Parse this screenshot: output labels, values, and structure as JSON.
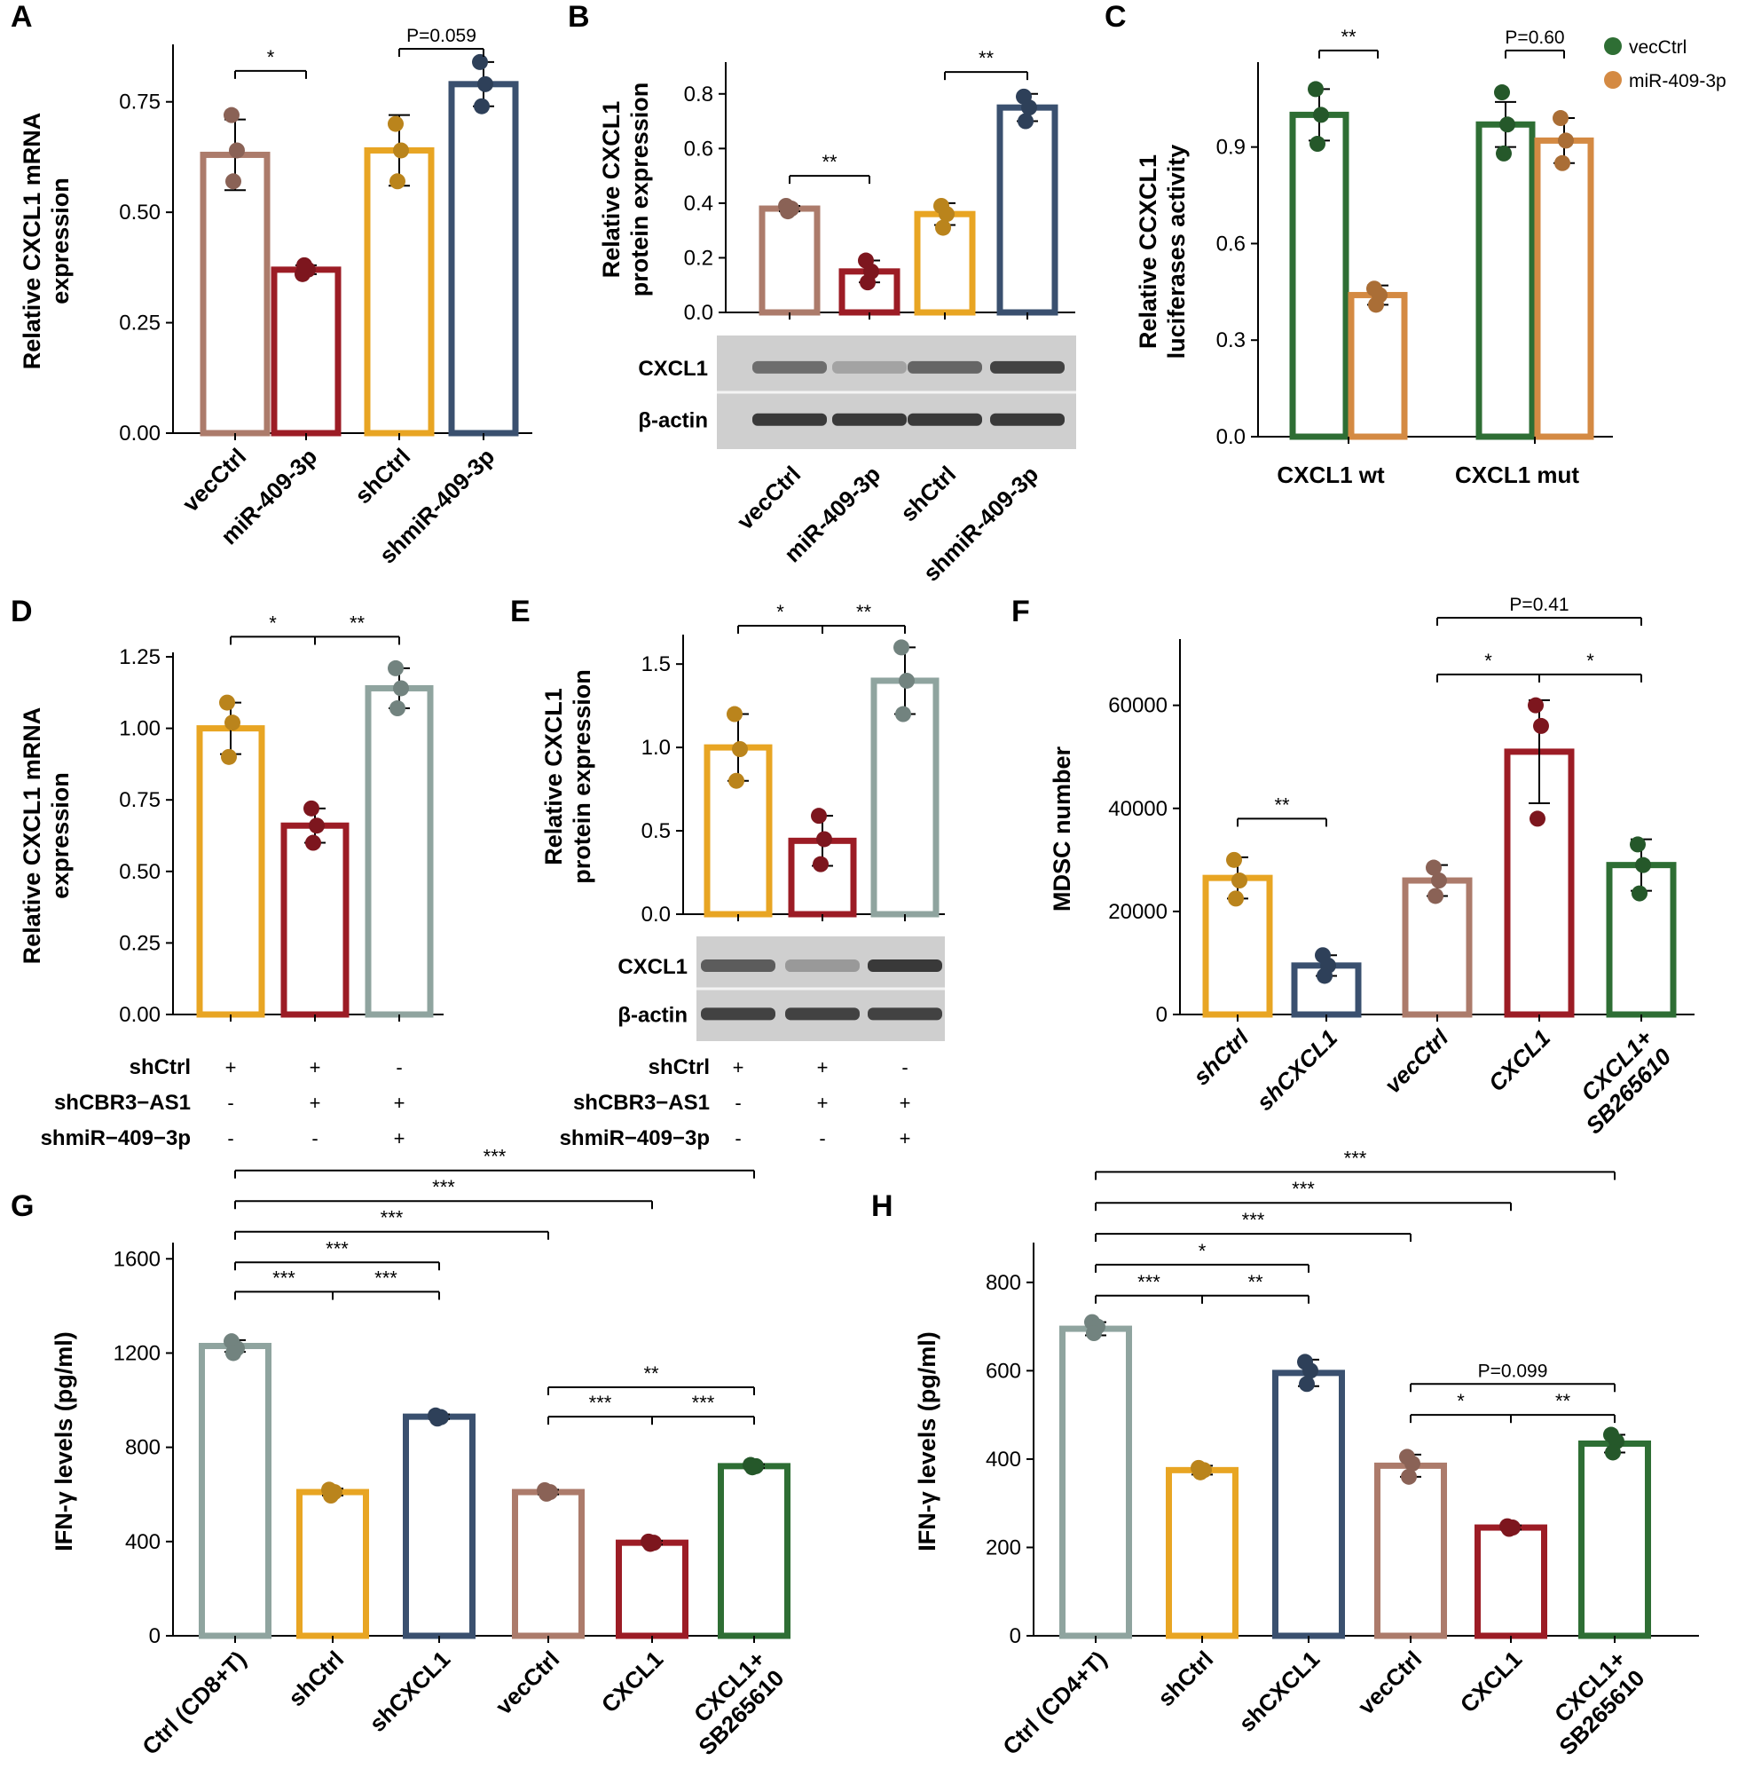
{
  "colors": {
    "vecCtrl": "#AC7B6B",
    "miR409": "#9C1C25",
    "shCtrl": "#E8A523",
    "shmiR409": "#3A506F",
    "gray": "#8FA49F",
    "luc_vec": "#2E6E34",
    "luc_mir": "#D48A43",
    "shCXCL1": "#3A506F",
    "CXCL1": "#9C1C25",
    "SB": "#2E6E34",
    "ctrl": "#8FA49F"
  },
  "chart_data": [
    {
      "id": "A",
      "panel_label": "A",
      "type": "bar",
      "ylabel": [
        "Relative CXCL1 mRNA",
        "expression"
      ],
      "ylim": [
        0,
        0.87
      ],
      "yticks": [
        0,
        0.25,
        0.5,
        0.75
      ],
      "ytick_labels": [
        "0.00",
        "0.25",
        "0.50",
        "0.75"
      ],
      "categories": [
        "vecCtrl",
        "miR-409-3p",
        "shCtrl",
        "shmiR-409-3p"
      ],
      "category_colors": [
        "vecCtrl",
        "miR409",
        "shCtrl",
        "shmiR409"
      ],
      "values": [
        0.63,
        0.37,
        0.64,
        0.79
      ],
      "err": [
        0.08,
        0.01,
        0.08,
        0.05
      ],
      "points": [
        [
          0.72,
          0.64,
          0.57
        ],
        [
          0.36,
          0.37,
          0.38
        ],
        [
          0.7,
          0.64,
          0.57
        ],
        [
          0.84,
          0.79,
          0.74
        ]
      ],
      "comparisons": [
        {
          "a": 0,
          "b": 1,
          "label": "*",
          "y": 0.82
        },
        {
          "a": 2,
          "b": 3,
          "label": "P=0.059",
          "y": 0.87
        }
      ]
    },
    {
      "id": "B",
      "panel_label": "B",
      "type": "bar",
      "ylabel": [
        "Relative CXCL1",
        "protein expression"
      ],
      "ylim": [
        0,
        0.9
      ],
      "yticks": [
        0,
        0.2,
        0.4,
        0.6,
        0.8
      ],
      "ytick_labels": [
        "0.0",
        "0.2",
        "0.4",
        "0.6",
        "0.8"
      ],
      "categories": [
        "vecCtrl",
        "miR-409-3p",
        "shCtrl",
        "shmiR-409-3p"
      ],
      "category_colors": [
        "vecCtrl",
        "miR409",
        "shCtrl",
        "shmiR409"
      ],
      "values": [
        0.38,
        0.15,
        0.36,
        0.75
      ],
      "err": [
        0.01,
        0.04,
        0.04,
        0.05
      ],
      "points": [
        [
          0.39,
          0.38,
          0.37
        ],
        [
          0.19,
          0.15,
          0.11
        ],
        [
          0.39,
          0.36,
          0.31
        ],
        [
          0.79,
          0.75,
          0.7
        ]
      ],
      "comparisons": [
        {
          "a": 0,
          "b": 1,
          "label": "**",
          "y": 0.5
        },
        {
          "a": 2,
          "b": 3,
          "label": "**",
          "y": 0.88
        }
      ],
      "blot": {
        "rows": [
          "CXCL1",
          "β-actin"
        ]
      }
    },
    {
      "id": "C",
      "panel_label": "C",
      "type": "bar",
      "ylabel": [
        "Relative CCXCL1",
        "luciferases activity"
      ],
      "ylim": [
        0,
        1.15
      ],
      "yticks": [
        0,
        0.3,
        0.6,
        0.9
      ],
      "ytick_labels": [
        "0.0",
        "0.3",
        "0.6",
        "0.9"
      ],
      "categories": [
        "CXCL1 wt",
        "CXCL1 mut"
      ],
      "series": [
        {
          "name": "vecCtrl",
          "color": "luc_vec",
          "values": [
            1.0,
            0.97
          ],
          "err": [
            0.08,
            0.07
          ],
          "points": [
            [
              1.08,
              1.0,
              0.91
            ],
            [
              1.07,
              0.97,
              0.88
            ]
          ]
        },
        {
          "name": "miR-409-3p",
          "color": "luc_mir",
          "values": [
            0.44,
            0.92
          ],
          "err": [
            0.03,
            0.07
          ],
          "points": [
            [
              0.46,
              0.44,
              0.41
            ],
            [
              0.99,
              0.92,
              0.85
            ]
          ]
        }
      ],
      "comparisons": [
        {
          "g": 0,
          "label": "**",
          "y": 1.2
        },
        {
          "g": 1,
          "label": "P=0.60",
          "y": 1.2
        }
      ],
      "legend": [
        "vecCtrl",
        "miR-409-3p"
      ]
    },
    {
      "id": "D",
      "panel_label": "D",
      "type": "bar",
      "ylabel": [
        "Relative CXCL1 mRNA",
        "expression"
      ],
      "ylim": [
        0,
        1.25
      ],
      "yticks": [
        0,
        0.25,
        0.5,
        0.75,
        1.0,
        1.25
      ],
      "ytick_labels": [
        "0.00",
        "0.25",
        "0.50",
        "0.75",
        "1.00",
        "1.25"
      ],
      "category_colors": [
        "shCtrl",
        "miR409",
        "gray"
      ],
      "values": [
        1.0,
        0.66,
        1.14
      ],
      "err": [
        0.09,
        0.06,
        0.07
      ],
      "points": [
        [
          1.09,
          1.02,
          0.9
        ],
        [
          0.72,
          0.66,
          0.6
        ],
        [
          1.21,
          1.14,
          1.07
        ]
      ],
      "comparisons": [
        {
          "a": 0,
          "b": 1,
          "label": "*",
          "y": 1.32
        },
        {
          "a": 1,
          "b": 2,
          "label": "**",
          "y": 1.32
        }
      ],
      "conditions": [
        {
          "label": "shCtrl",
          "signs": [
            "+",
            "+",
            "-"
          ]
        },
        {
          "label": "shCBR3−AS1",
          "signs": [
            "-",
            "+",
            "+"
          ]
        },
        {
          "label": "shmiR−409−3p",
          "signs": [
            "-",
            "-",
            "+"
          ]
        }
      ]
    },
    {
      "id": "E",
      "panel_label": "E",
      "type": "bar",
      "ylabel": [
        "Relative CXCL1",
        "protein expression"
      ],
      "ylim": [
        0,
        1.65
      ],
      "yticks": [
        0,
        0.5,
        1.0,
        1.5
      ],
      "ytick_labels": [
        "0.0",
        "0.5",
        "1.0",
        "1.5"
      ],
      "category_colors": [
        "shCtrl",
        "miR409",
        "gray"
      ],
      "values": [
        1.0,
        0.44,
        1.4
      ],
      "err": [
        0.2,
        0.15,
        0.2
      ],
      "points": [
        [
          1.2,
          0.99,
          0.8
        ],
        [
          0.59,
          0.45,
          0.3
        ],
        [
          1.6,
          1.4,
          1.2
        ]
      ],
      "comparisons": [
        {
          "a": 0,
          "b": 1,
          "label": "*",
          "y": 1.73
        },
        {
          "a": 1,
          "b": 2,
          "label": "**",
          "y": 1.73
        }
      ],
      "conditions": [
        {
          "label": "shCtrl",
          "signs": [
            "+",
            "+",
            "-"
          ]
        },
        {
          "label": "shCBR3−AS1",
          "signs": [
            "-",
            "+",
            "+"
          ]
        },
        {
          "label": "shmiR−409−3p",
          "signs": [
            "-",
            "-",
            "+"
          ]
        }
      ],
      "blot": {
        "rows": [
          "CXCL1",
          "β-actin"
        ]
      }
    },
    {
      "id": "F",
      "panel_label": "F",
      "type": "bar",
      "ylabel": [
        "MDSC number"
      ],
      "ylim": [
        0,
        72000
      ],
      "yticks": [
        0,
        20000,
        40000,
        60000
      ],
      "ytick_labels": [
        "0",
        "20000",
        "40000",
        "60000"
      ],
      "categories": [
        "shCtrl",
        "shCXCL1",
        "vecCtrl",
        "CXCL1",
        "CXCL1+|SB265610"
      ],
      "category_colors": [
        "shCtrl",
        "shCXCL1",
        "vecCtrl",
        "CXCL1",
        "SB"
      ],
      "values": [
        26500,
        9500,
        26000,
        51000,
        29000
      ],
      "err": [
        4000,
        2000,
        3000,
        10000,
        5000
      ],
      "points": [
        [
          30000,
          26000,
          22500
        ],
        [
          11500,
          9500,
          7500
        ],
        [
          28500,
          26000,
          23000
        ],
        [
          60000,
          56000,
          38000
        ],
        [
          33000,
          29000,
          23500
        ]
      ],
      "comparisons": [
        {
          "a": 0,
          "b": 1,
          "label": "**",
          "y": 38000
        },
        {
          "a": 2,
          "b": 3,
          "label": "*",
          "y": 66000
        },
        {
          "a": 3,
          "b": 4,
          "label": "*",
          "y": 66000
        },
        {
          "a": 2,
          "b": 4,
          "label": "P=0.41",
          "y": 77000
        }
      ]
    },
    {
      "id": "G",
      "panel_label": "G",
      "type": "bar",
      "ylabel": [
        "IFN-γ levels (pg/ml)"
      ],
      "ylim": [
        0,
        1650
      ],
      "yticks": [
        0,
        400,
        800,
        1200,
        1600
      ],
      "ytick_labels": [
        "0",
        "400",
        "800",
        "1200",
        "1600"
      ],
      "categories": [
        "Ctrl (CD8+T)",
        "shCtrl",
        "shCXCL1",
        "vecCtrl",
        "CXCL1",
        "CXCL1+|SB265610"
      ],
      "category_colors": [
        "ctrl",
        "shCtrl",
        "shCXCL1",
        "vecCtrl",
        "CXCL1",
        "SB"
      ],
      "values": [
        1230,
        610,
        930,
        610,
        395,
        720
      ],
      "err": [
        25,
        15,
        10,
        10,
        8,
        8
      ],
      "points": [
        [
          1250,
          1220,
          1200
        ],
        [
          620,
          610,
          595
        ],
        [
          935,
          928,
          922
        ],
        [
          618,
          610,
          603
        ],
        [
          400,
          395,
          390
        ],
        [
          725,
          720,
          715
        ]
      ],
      "comparisons": [
        {
          "a": 0,
          "b": 1,
          "label": "***",
          "y": 1460
        },
        {
          "a": 1,
          "b": 2,
          "label": "***",
          "y": 1460
        },
        {
          "a": 0,
          "b": 2,
          "label": "***",
          "y": 1585
        },
        {
          "a": 0,
          "b": 3,
          "label": "***",
          "y": 1715
        },
        {
          "a": 0,
          "b": 4,
          "label": "***",
          "y": 1845
        },
        {
          "a": 0,
          "b": 5,
          "label": "***",
          "y": 1975
        },
        {
          "a": 3,
          "b": 4,
          "label": "***",
          "y": 930
        },
        {
          "a": 4,
          "b": 5,
          "label": "***",
          "y": 930
        },
        {
          "a": 3,
          "b": 5,
          "label": "**",
          "y": 1055
        }
      ]
    },
    {
      "id": "H",
      "panel_label": "H",
      "type": "bar",
      "ylabel": [
        "IFN-γ levels (pg/ml)"
      ],
      "ylim": [
        0,
        880
      ],
      "yticks": [
        0,
        200,
        400,
        600,
        800
      ],
      "ytick_labels": [
        "0",
        "200",
        "400",
        "600",
        "800"
      ],
      "categories": [
        "Ctrl (CD4+T)",
        "shCtrl",
        "shCXCL1",
        "vecCtrl",
        "CXCL1",
        "CXCL1+|SB265610"
      ],
      "category_colors": [
        "ctrl",
        "shCtrl",
        "shCXCL1",
        "vecCtrl",
        "CXCL1",
        "SB"
      ],
      "values": [
        695,
        375,
        595,
        385,
        245,
        435
      ],
      "err": [
        15,
        10,
        30,
        25,
        5,
        20
      ],
      "points": [
        [
          710,
          700,
          685
        ],
        [
          380,
          375,
          370
        ],
        [
          620,
          600,
          570
        ],
        [
          405,
          390,
          360
        ],
        [
          248,
          245,
          242
        ],
        [
          455,
          440,
          415
        ]
      ],
      "comparisons": [
        {
          "a": 0,
          "b": 1,
          "label": "***",
          "y": 770
        },
        {
          "a": 1,
          "b": 2,
          "label": "**",
          "y": 770
        },
        {
          "a": 0,
          "b": 2,
          "label": "*",
          "y": 840
        },
        {
          "a": 0,
          "b": 3,
          "label": "***",
          "y": 910
        },
        {
          "a": 0,
          "b": 4,
          "label": "***",
          "y": 980
        },
        {
          "a": 0,
          "b": 5,
          "label": "***",
          "y": 1050
        },
        {
          "a": 3,
          "b": 4,
          "label": "*",
          "y": 500
        },
        {
          "a": 4,
          "b": 5,
          "label": "**",
          "y": 500
        },
        {
          "a": 3,
          "b": 5,
          "label": "P=0.099",
          "y": 570
        }
      ]
    }
  ]
}
